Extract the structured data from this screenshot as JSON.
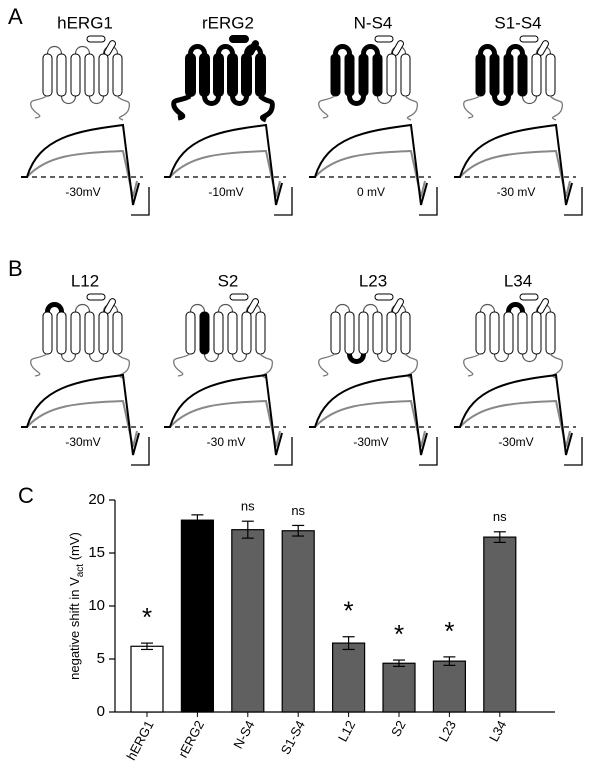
{
  "panel_a": {
    "letter": "A",
    "constructs": [
      {
        "name": "hERG1",
        "voltage": "-30mV"
      },
      {
        "name": "rERG2",
        "voltage": "-10mV"
      },
      {
        "name": "N-S4",
        "voltage": "0 mV"
      },
      {
        "name": "S1-S4",
        "voltage": "-30 mV"
      }
    ]
  },
  "panel_b": {
    "letter": "B",
    "constructs": [
      {
        "name": "L12",
        "voltage": "-30mV"
      },
      {
        "name": "S2",
        "voltage": "-30 mV"
      },
      {
        "name": "L23",
        "voltage": "-30mV"
      },
      {
        "name": "L34",
        "voltage": "-30mV"
      }
    ]
  },
  "chart_data": {
    "type": "bar",
    "letter": "C",
    "ylabel": "negative shift in V",
    "ylabel_sub": "act",
    "ylabel_end": " (mV)",
    "categories": [
      "hERG1",
      "rERG2",
      "N-S4",
      "S1-S4",
      "L12",
      "S2",
      "L23",
      "L34"
    ],
    "values": [
      6.2,
      18.1,
      17.2,
      17.1,
      6.5,
      4.6,
      4.8,
      16.5
    ],
    "errors": [
      0.3,
      0.5,
      0.8,
      0.5,
      0.6,
      0.3,
      0.4,
      0.5
    ],
    "annotations": [
      "*",
      null,
      "ns",
      "ns",
      "*",
      "*",
      "*",
      "ns"
    ],
    "colors": [
      "#ffffff",
      "#000000",
      "#606060",
      "#606060",
      "#606060",
      "#606060",
      "#606060",
      "#606060"
    ],
    "ylim": [
      0,
      20
    ],
    "yticks": [
      0,
      5,
      10,
      15,
      20
    ]
  }
}
